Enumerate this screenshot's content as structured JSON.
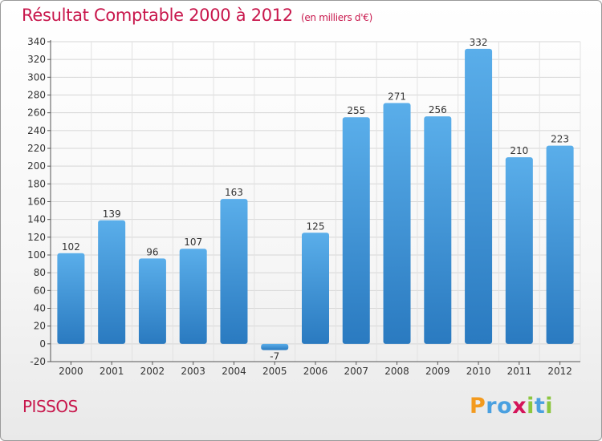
{
  "chart_data": {
    "type": "bar",
    "title": "Résultat Comptable 2000 à 2012",
    "subtitle": "(en milliers d'€)",
    "categories": [
      "2000",
      "2001",
      "2002",
      "2003",
      "2004",
      "2005",
      "2006",
      "2007",
      "2008",
      "2009",
      "2010",
      "2011",
      "2012"
    ],
    "values": [
      102,
      139,
      96,
      107,
      163,
      -7,
      125,
      255,
      271,
      256,
      332,
      210,
      223
    ],
    "value_labels": [
      "102",
      "139",
      "96",
      "107",
      "163",
      "-7",
      "125",
      "255",
      "271",
      "256",
      "332",
      "210",
      "223"
    ],
    "yticks": [
      "340",
      "320",
      "300",
      "280",
      "260",
      "240",
      "220",
      "200",
      "180",
      "160",
      "140",
      "120",
      "100",
      "80",
      "60",
      "40",
      "20",
      "0",
      "-20"
    ],
    "ylim": [
      -20,
      340
    ],
    "ystep": 20,
    "xlabel": "",
    "ylabel": "",
    "grid": true,
    "colors": {
      "bar_top": "#5aaeea",
      "bar_bottom": "#2a7ac0",
      "title": "#c8174c"
    }
  },
  "place_name": "PISSOS",
  "logo": {
    "letters": [
      "P",
      "r",
      "o",
      "x",
      "i",
      "t",
      "i"
    ],
    "colors": [
      "#f39a1e",
      "#4aa0e0",
      "#4aa0e0",
      "#d4145a",
      "#8cc63f",
      "#4aa0e0",
      "#8cc63f"
    ]
  }
}
